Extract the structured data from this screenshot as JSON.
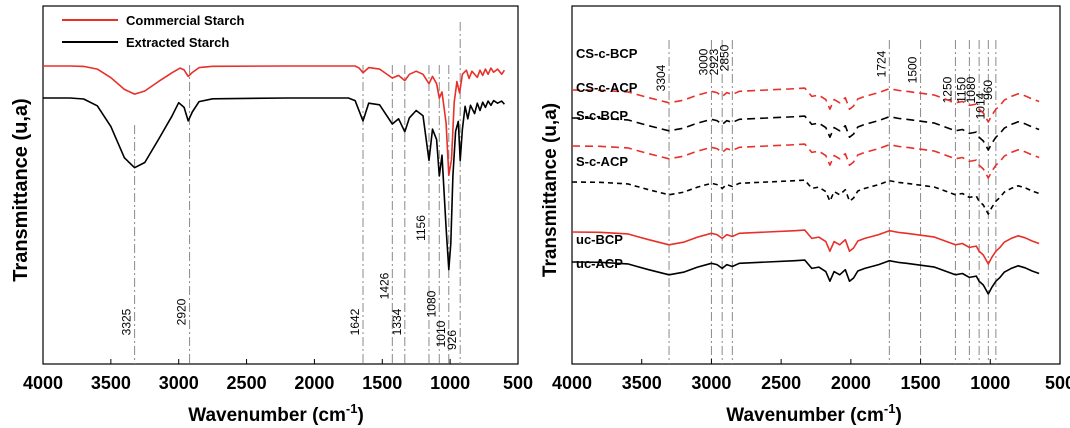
{
  "chart_data": [
    {
      "type": "line",
      "panel": "left",
      "xlabel": "Wavenumber (cm",
      "xlabel_sup": "-1",
      "xlabel_end": ")",
      "ylabel": "Transmittance (u,a)",
      "xlim": [
        4000,
        500
      ],
      "x_ticks": [
        "4000",
        "3500",
        "3000",
        "2500",
        "2000",
        "1500",
        "1000",
        "500"
      ],
      "legend": {
        "placement": "top-left",
        "items": [
          {
            "name": "Commercial Starch",
            "color": "#e8302a"
          },
          {
            "name": "Extracted Starch",
            "color": "#000000"
          }
        ]
      },
      "peak_markers": [
        "3325",
        "2920",
        "1642",
        "1426",
        "1334",
        "1156",
        "1080",
        "1010",
        "926"
      ],
      "series": [
        {
          "name": "Commercial Starch",
          "color": "#e8302a",
          "points": [
            [
              4000,
              0.0
            ],
            [
              3800,
              0.0
            ],
            [
              3700,
              -0.15
            ],
            [
              3600,
              -1.2
            ],
            [
              3500,
              -4.5
            ],
            [
              3400,
              -9.0
            ],
            [
              3325,
              -10.8
            ],
            [
              3250,
              -9.6
            ],
            [
              3150,
              -6.0
            ],
            [
              3050,
              -2.6
            ],
            [
              2990,
              -0.8
            ],
            [
              2960,
              -1.5
            ],
            [
              2930,
              -4.0
            ],
            [
              2900,
              -2.5
            ],
            [
              2850,
              -0.6
            ],
            [
              2750,
              -0.1
            ],
            [
              2200,
              0.0
            ],
            [
              1700,
              0.0
            ],
            [
              1670,
              -0.8
            ],
            [
              1642,
              -2.6
            ],
            [
              1600,
              -0.6
            ],
            [
              1520,
              -1.2
            ],
            [
              1426,
              -4.6
            ],
            [
              1380,
              -3.6
            ],
            [
              1334,
              -5.6
            ],
            [
              1300,
              -3.2
            ],
            [
              1250,
              -2.0
            ],
            [
              1200,
              -3.2
            ],
            [
              1156,
              -6.8
            ],
            [
              1130,
              -4.0
            ],
            [
              1100,
              -6.8
            ],
            [
              1080,
              -12.4
            ],
            [
              1060,
              -10.0
            ],
            [
              1030,
              -22.0
            ],
            [
              1010,
              -42.0
            ],
            [
              990,
              -36.0
            ],
            [
              970,
              -14.0
            ],
            [
              950,
              -6.0
            ],
            [
              930,
              -10.4
            ],
            [
              910,
              -3.2
            ],
            [
              880,
              -1.6
            ],
            [
              860,
              -4.8
            ],
            [
              840,
              -2.0
            ],
            [
              800,
              -4.4
            ],
            [
              780,
              -1.6
            ],
            [
              760,
              -3.6
            ],
            [
              740,
              -1.2
            ],
            [
              720,
              -3.2
            ],
            [
              700,
              -0.8
            ],
            [
              680,
              -2.4
            ],
            [
              650,
              -1.2
            ],
            [
              620,
              -3.2
            ],
            [
              600,
              -1.6
            ]
          ]
        },
        {
          "name": "Extracted Starch",
          "color": "#000000",
          "points": [
            [
              4000,
              0.0
            ],
            [
              3800,
              0.0
            ],
            [
              3700,
              -0.4
            ],
            [
              3600,
              -3.0
            ],
            [
              3500,
              -11.0
            ],
            [
              3400,
              -23.0
            ],
            [
              3325,
              -26.8
            ],
            [
              3250,
              -24.8
            ],
            [
              3150,
              -16.0
            ],
            [
              3050,
              -7.0
            ],
            [
              3000,
              -1.8
            ],
            [
              2960,
              -3.6
            ],
            [
              2930,
              -8.8
            ],
            [
              2900,
              -5.4
            ],
            [
              2850,
              -1.4
            ],
            [
              2750,
              -0.3
            ],
            [
              2200,
              0.0
            ],
            [
              1750,
              0.0
            ],
            [
              1700,
              -1.0
            ],
            [
              1642,
              -8.8
            ],
            [
              1600,
              -2.0
            ],
            [
              1520,
              -2.6
            ],
            [
              1426,
              -10.0
            ],
            [
              1380,
              -8.0
            ],
            [
              1334,
              -13.0
            ],
            [
              1300,
              -7.6
            ],
            [
              1250,
              -4.8
            ],
            [
              1200,
              -6.8
            ],
            [
              1156,
              -24.0
            ],
            [
              1130,
              -12.0
            ],
            [
              1100,
              -16.0
            ],
            [
              1080,
              -30.0
            ],
            [
              1060,
              -22.0
            ],
            [
              1030,
              -50.0
            ],
            [
              1010,
              -66.0
            ],
            [
              995,
              -56.0
            ],
            [
              980,
              -30.0
            ],
            [
              960,
              -12.8
            ],
            [
              940,
              -9.0
            ],
            [
              926,
              -24.0
            ],
            [
              910,
              -12.0
            ],
            [
              890,
              -3.2
            ],
            [
              870,
              -8.0
            ],
            [
              850,
              -2.8
            ],
            [
              820,
              -6.0
            ],
            [
              800,
              -2.0
            ],
            [
              780,
              -4.8
            ],
            [
              760,
              -1.6
            ],
            [
              740,
              -3.6
            ],
            [
              720,
              -1.2
            ],
            [
              700,
              -2.8
            ],
            [
              680,
              -1.0
            ],
            [
              650,
              -2.0
            ],
            [
              620,
              -1.2
            ],
            [
              600,
              -2.4
            ]
          ]
        }
      ]
    },
    {
      "type": "line",
      "panel": "right",
      "xlabel": "Wavenumber (cm",
      "xlabel_sup": "-1",
      "xlabel_end": ")",
      "ylabel": "Transmittance (u,a)",
      "xlim": [
        4000,
        500
      ],
      "x_ticks": [
        "4000",
        "3500",
        "3000",
        "2500",
        "2000",
        "1500",
        "1000",
        "500"
      ],
      "peak_markers": [
        "3304",
        "3000",
        "2923",
        "2850",
        "1724",
        "1500",
        "1250",
        "1150",
        "1080",
        "1014",
        "960"
      ],
      "series": [
        {
          "name": "CS-c-BCP",
          "color": "#e8302a",
          "dash": "8,5",
          "offset": 6
        },
        {
          "name": "CS-c-ACP",
          "color": "#000000",
          "dash": "8,5",
          "offset": 5
        },
        {
          "name": "S-c-BCP",
          "color": "#e8302a",
          "dash": "8,5",
          "offset": 4
        },
        {
          "name": "S-c-ACP",
          "color": "#000000",
          "dash": "5,4",
          "offset": 3
        },
        {
          "name": "uc-BCP",
          "color": "#e8302a",
          "dash": "",
          "offset": 1
        },
        {
          "name": "uc-ACP",
          "color": "#000000",
          "dash": "",
          "offset": 0
        }
      ],
      "base_shape": [
        [
          4000,
          0.0
        ],
        [
          3800,
          -0.2
        ],
        [
          3600,
          -1.2
        ],
        [
          3450,
          -4.8
        ],
        [
          3304,
          -8.0
        ],
        [
          3200,
          -6.4
        ],
        [
          3100,
          -3.2
        ],
        [
          3000,
          -0.8
        ],
        [
          2960,
          -1.6
        ],
        [
          2923,
          -4.0
        ],
        [
          2890,
          -1.6
        ],
        [
          2850,
          -2.8
        ],
        [
          2800,
          -0.8
        ],
        [
          2600,
          0.0
        ],
        [
          2400,
          0.8
        ],
        [
          2330,
          1.2
        ],
        [
          2280,
          -4.0
        ],
        [
          2230,
          -3.2
        ],
        [
          2180,
          -6.0
        ],
        [
          2150,
          -12.0
        ],
        [
          2120,
          -6.0
        ],
        [
          2080,
          -8.0
        ],
        [
          2040,
          -4.8
        ],
        [
          2010,
          -12.0
        ],
        [
          1980,
          -10.0
        ],
        [
          1950,
          -5.6
        ],
        [
          1900,
          -4.0
        ],
        [
          1800,
          -1.6
        ],
        [
          1724,
          0.8
        ],
        [
          1650,
          -0.4
        ],
        [
          1600,
          -0.8
        ],
        [
          1500,
          -2.0
        ],
        [
          1400,
          -3.2
        ],
        [
          1300,
          -6.4
        ],
        [
          1250,
          -8.0
        ],
        [
          1200,
          -7.2
        ],
        [
          1150,
          -9.6
        ],
        [
          1100,
          -8.8
        ],
        [
          1080,
          -12.0
        ],
        [
          1050,
          -14.4
        ],
        [
          1014,
          -20.0
        ],
        [
          990,
          -16.0
        ],
        [
          960,
          -12.0
        ],
        [
          930,
          -9.6
        ],
        [
          900,
          -6.4
        ],
        [
          850,
          -4.0
        ],
        [
          800,
          -2.4
        ],
        [
          750,
          -3.6
        ],
        [
          700,
          -5.6
        ],
        [
          650,
          -7.2
        ]
      ]
    }
  ]
}
